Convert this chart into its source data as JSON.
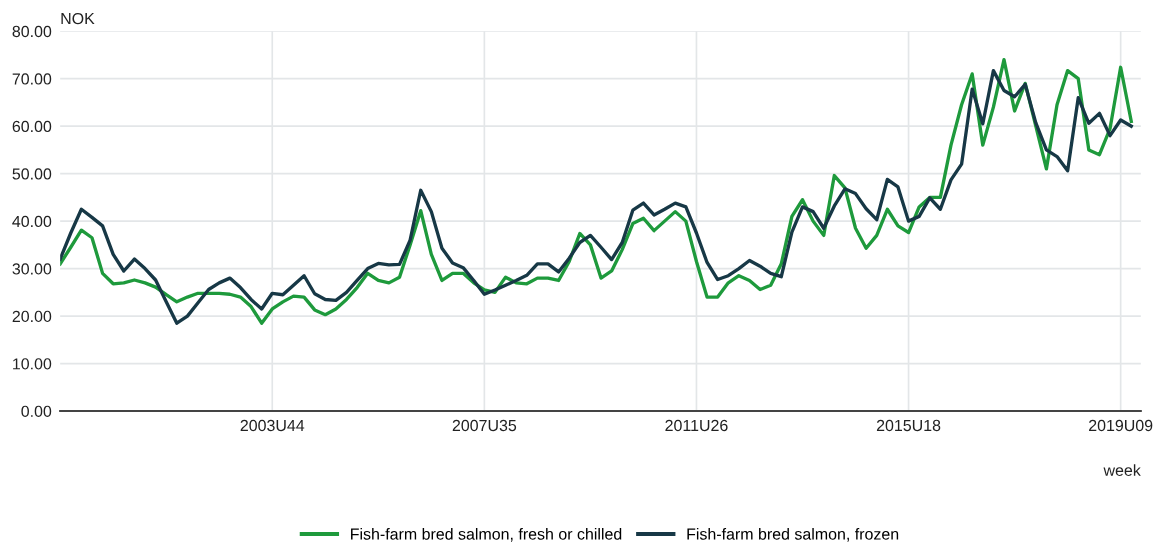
{
  "chart_data": {
    "type": "line",
    "ylabel": "NOK",
    "xlabel": "week",
    "ylim": [
      0,
      80
    ],
    "categories": [
      null,
      null,
      null,
      null,
      null,
      null,
      null,
      null,
      null,
      null,
      null,
      null,
      null,
      null,
      null,
      null,
      null,
      null,
      null,
      null,
      "2003U44",
      null,
      null,
      null,
      null,
      null,
      null,
      null,
      null,
      null,
      null,
      null,
      null,
      null,
      null,
      null,
      null,
      null,
      null,
      null,
      "2007U35",
      null,
      null,
      null,
      null,
      null,
      null,
      null,
      null,
      null,
      null,
      null,
      null,
      null,
      null,
      null,
      null,
      null,
      null,
      null,
      "2011U26",
      null,
      null,
      null,
      null,
      null,
      null,
      null,
      null,
      null,
      null,
      null,
      null,
      null,
      null,
      null,
      null,
      null,
      null,
      null,
      "2015U18",
      null,
      null,
      null,
      null,
      null,
      null,
      null,
      null,
      null,
      null,
      null,
      null,
      null,
      null,
      null,
      null,
      null,
      null,
      null,
      "2019U09",
      null
    ],
    "yticks": [
      {
        "value": 0,
        "label": "0.00"
      },
      {
        "value": 10,
        "label": "10.00"
      },
      {
        "value": 20,
        "label": "20.00"
      },
      {
        "value": 30,
        "label": "30.00"
      },
      {
        "value": 40,
        "label": "40.00"
      },
      {
        "value": 50,
        "label": "50.00"
      },
      {
        "value": 60,
        "label": "60.00"
      },
      {
        "value": 70,
        "label": "70.00"
      },
      {
        "value": 80,
        "label": "80.00"
      }
    ],
    "grid": true,
    "legend": "bottom",
    "marker": "none",
    "line_style": "solid",
    "series": [
      {
        "name": "Fish-farm bred salmon, fresh or chilled",
        "color": "#1e9a3c",
        "values": [
          31,
          34.5,
          38.1,
          36.5,
          29,
          26.8,
          27,
          27.6,
          27,
          26.1,
          24.5,
          23,
          24,
          24.8,
          24.8,
          24.8,
          24.6,
          24,
          22,
          18.5,
          21.5,
          23,
          24.2,
          24,
          21.3,
          20.3,
          21.5,
          23.5,
          26,
          29,
          27.5,
          27,
          28.2,
          35,
          42.2,
          33,
          27.5,
          29,
          29,
          27,
          25.5,
          25,
          28.2,
          27,
          26.8,
          28,
          28,
          27.5,
          31.5,
          37.4,
          35,
          28,
          29.5,
          34,
          39.5,
          40.6,
          38,
          40,
          42,
          40,
          31.5,
          24,
          24,
          27,
          28.5,
          27.5,
          25.6,
          26.5,
          31,
          41,
          44.5,
          40,
          37,
          49.6,
          47,
          38.5,
          34.3,
          37,
          42.5,
          39,
          37.6,
          43,
          45,
          45,
          56,
          64.5,
          71,
          56,
          64,
          74,
          63.2,
          69,
          60,
          51,
          64.5,
          71.7,
          70,
          55,
          54,
          59.5,
          72.4,
          61
        ]
      },
      {
        "name": "Fish-farm bred salmon, frozen",
        "color": "#173846",
        "values": [
          32,
          37.5,
          42.5,
          40.8,
          39,
          33,
          29.5,
          32,
          30,
          27.6,
          23,
          18.5,
          20,
          22.8,
          25.6,
          27,
          28,
          26,
          23.5,
          21.5,
          24.8,
          24.5,
          26.5,
          28.5,
          24.7,
          23.5,
          23.3,
          25,
          27.5,
          30,
          31.1,
          30.8,
          30.9,
          36,
          46.5,
          42,
          34.3,
          31.2,
          30.2,
          27.5,
          24.6,
          25.5,
          26.5,
          27.5,
          28.6,
          31,
          31,
          29.3,
          32.2,
          35.5,
          37,
          34.5,
          31.9,
          35.5,
          42.3,
          43.8,
          41.3,
          42.5,
          43.8,
          43,
          37.5,
          31.3,
          27.7,
          28.5,
          30,
          31.7,
          30.5,
          29,
          28.3,
          37.7,
          43,
          42,
          38.5,
          43.2,
          46.8,
          45.8,
          42.6,
          40.3,
          48.8,
          47.2,
          40,
          41,
          44.9,
          42.5,
          48.7,
          52,
          67.8,
          60.5,
          71.7,
          67.5,
          66.2,
          68.8,
          60.7,
          55,
          53.6,
          50.6,
          66,
          60.6,
          62.7,
          58,
          61.3,
          60
        ]
      }
    ]
  }
}
